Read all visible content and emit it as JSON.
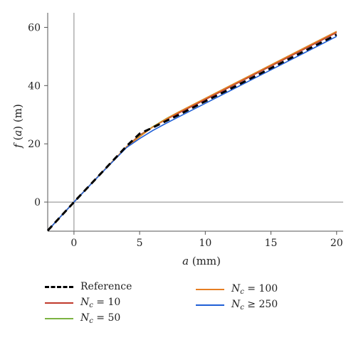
{
  "chart_data": {
    "type": "line",
    "xlabel": "a (mm)",
    "ylabel": "f (a) (m)",
    "xlim": [
      -2,
      20.5
    ],
    "ylim": [
      -10,
      65
    ],
    "xticks": [
      0,
      5,
      10,
      15,
      20
    ],
    "yticks": [
      0,
      20,
      40,
      60
    ],
    "xtick_labels": [
      "0",
      "5",
      "10",
      "15",
      "20"
    ],
    "ytick_labels": [
      "0",
      "20",
      "40",
      "60"
    ],
    "grid": false,
    "legend_position": "bottom",
    "series": [
      {
        "name": "Reference",
        "color": "#000000",
        "style": "dashed",
        "x": [
          -2,
          0,
          2,
          4,
          5,
          6,
          7,
          8,
          10,
          12,
          14,
          16,
          18,
          20
        ],
        "y": [
          -9.8,
          0,
          9.6,
          19.2,
          23.5,
          25.6,
          27.8,
          30.0,
          34.6,
          39.1,
          43.7,
          48.3,
          52.9,
          57.5
        ]
      },
      {
        "name": "N_c = 10",
        "color": "#c0392b",
        "style": "solid",
        "x": [
          -2,
          0,
          2,
          4,
          5,
          6,
          7,
          8,
          10,
          12,
          14,
          16,
          18,
          20
        ],
        "y": [
          -9.8,
          0,
          9.6,
          19.0,
          23.0,
          25.8,
          28.3,
          30.6,
          35.2,
          39.8,
          44.4,
          49.0,
          53.6,
          58.2
        ]
      },
      {
        "name": "N_c = 50",
        "color": "#7cb342",
        "style": "solid",
        "x": [
          -2,
          0,
          2,
          4,
          5,
          6,
          7,
          8,
          10,
          12,
          14,
          16,
          18,
          20
        ],
        "y": [
          -9.8,
          0,
          9.6,
          19.0,
          22.6,
          25.9,
          28.6,
          31.0,
          35.6,
          40.2,
          44.8,
          49.4,
          54.0,
          58.6
        ]
      },
      {
        "name": "N_c = 100",
        "color": "#e67e22",
        "style": "solid",
        "x": [
          -2,
          0,
          2,
          4,
          5,
          6,
          7,
          8,
          10,
          12,
          14,
          16,
          18,
          20
        ],
        "y": [
          -9.8,
          0,
          9.6,
          19.0,
          22.4,
          25.8,
          28.5,
          31.0,
          35.6,
          40.2,
          44.8,
          49.4,
          54.0,
          58.6
        ]
      },
      {
        "name": "N_c ≥ 250",
        "color": "#1f5fd6",
        "style": "solid",
        "x": [
          -2,
          0,
          2,
          4,
          5,
          6,
          7,
          8,
          10,
          12,
          14,
          16,
          18,
          20
        ],
        "y": [
          -9.8,
          0,
          9.5,
          18.7,
          21.8,
          24.6,
          27.0,
          29.3,
          33.9,
          38.5,
          43.1,
          47.7,
          52.3,
          56.9
        ]
      }
    ]
  },
  "legend": {
    "items": [
      {
        "main": "Reference",
        "prefix": "",
        "sub": "",
        "suffix": ""
      },
      {
        "main": "",
        "prefix": "N",
        "sub": "c",
        "suffix": " = 10"
      },
      {
        "main": "",
        "prefix": "N",
        "sub": "c",
        "suffix": " = 50"
      },
      {
        "main": "",
        "prefix": "N",
        "sub": "c",
        "suffix": " = 100"
      },
      {
        "main": "",
        "prefix": "N",
        "sub": "c",
        "suffix": " ≥ 250"
      }
    ]
  },
  "axes": {
    "xlabel_italic": "a",
    "xlabel_rest": " (mm)",
    "ylabel_f": "f",
    "ylabel_a": "a",
    "ylabel_rest": " (m)"
  }
}
